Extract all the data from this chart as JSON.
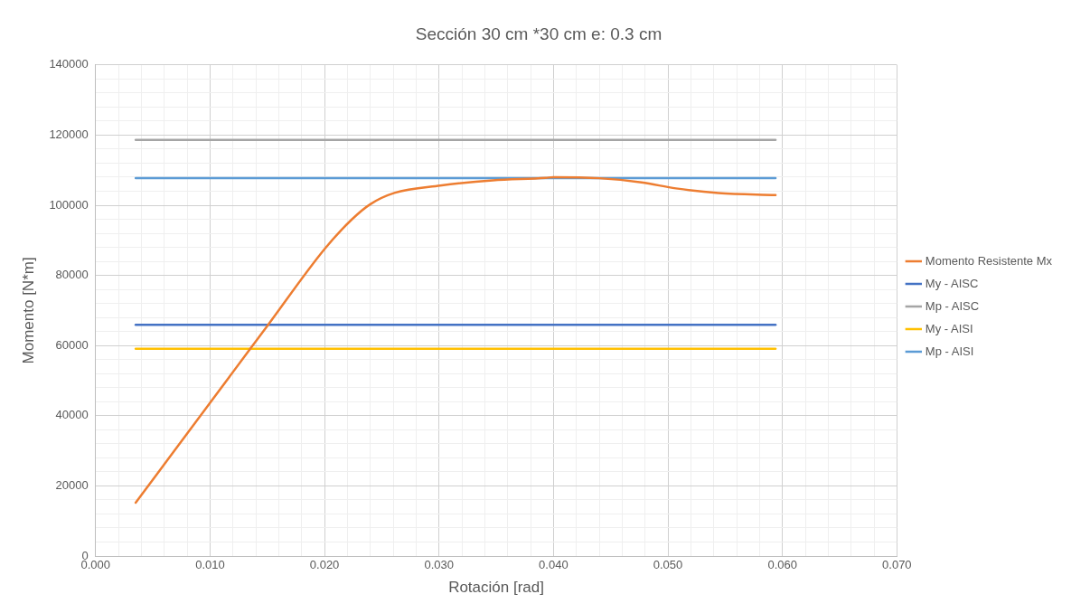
{
  "chart_data": {
    "type": "line",
    "title": "Sección 30 cm *30 cm e: 0.3 cm",
    "xlabel": "Rotación [rad]",
    "ylabel": "Momento [N*m]",
    "xlim": [
      0,
      0.07
    ],
    "xticks": [
      {
        "value": 0,
        "label": "0.000"
      },
      {
        "value": 0.002,
        "label": null
      },
      {
        "value": 0.004,
        "label": null
      },
      {
        "value": 0.006,
        "label": null
      },
      {
        "value": 0.008,
        "label": null
      },
      {
        "value": 0.01,
        "label": "0.010"
      },
      {
        "value": 0.012,
        "label": null
      },
      {
        "value": 0.014,
        "label": null
      },
      {
        "value": 0.016,
        "label": null
      },
      {
        "value": 0.018,
        "label": null
      },
      {
        "value": 0.02,
        "label": "0.020"
      },
      {
        "value": 0.022,
        "label": null
      },
      {
        "value": 0.024,
        "label": null
      },
      {
        "value": 0.026,
        "label": null
      },
      {
        "value": 0.028,
        "label": null
      },
      {
        "value": 0.03,
        "label": "0.030"
      },
      {
        "value": 0.032,
        "label": null
      },
      {
        "value": 0.034,
        "label": null
      },
      {
        "value": 0.036,
        "label": null
      },
      {
        "value": 0.038,
        "label": null
      },
      {
        "value": 0.04,
        "label": "0.040"
      },
      {
        "value": 0.042,
        "label": null
      },
      {
        "value": 0.044,
        "label": null
      },
      {
        "value": 0.046,
        "label": null
      },
      {
        "value": 0.048,
        "label": null
      },
      {
        "value": 0.05,
        "label": "0.050"
      },
      {
        "value": 0.052,
        "label": null
      },
      {
        "value": 0.054,
        "label": null
      },
      {
        "value": 0.056,
        "label": null
      },
      {
        "value": 0.058,
        "label": null
      },
      {
        "value": 0.06,
        "label": "0.060"
      },
      {
        "value": 0.062,
        "label": null
      },
      {
        "value": 0.064,
        "label": null
      },
      {
        "value": 0.066,
        "label": null
      },
      {
        "value": 0.068,
        "label": null
      },
      {
        "value": 0.07,
        "label": "0.070"
      }
    ],
    "ylim": [
      0,
      140000
    ],
    "yticks": [
      0,
      {
        "value": 4000,
        "label": null
      },
      {
        "value": 8000,
        "label": null
      },
      {
        "value": 12000,
        "label": null
      },
      {
        "value": 16000,
        "label": null
      },
      20000,
      {
        "value": 24000,
        "label": null
      },
      {
        "value": 28000,
        "label": null
      },
      {
        "value": 32000,
        "label": null
      },
      {
        "value": 36000,
        "label": null
      },
      40000,
      {
        "value": 44000,
        "label": null
      },
      {
        "value": 48000,
        "label": null
      },
      {
        "value": 52000,
        "label": null
      },
      {
        "value": 56000,
        "label": null
      },
      60000,
      {
        "value": 64000,
        "label": null
      },
      {
        "value": 68000,
        "label": null
      },
      {
        "value": 72000,
        "label": null
      },
      {
        "value": 76000,
        "label": null
      },
      80000,
      {
        "value": 84000,
        "label": null
      },
      {
        "value": 88000,
        "label": null
      },
      {
        "value": 92000,
        "label": null
      },
      {
        "value": 96000,
        "label": null
      },
      100000,
      {
        "value": 104000,
        "label": null
      },
      {
        "value": 108000,
        "label": null
      },
      {
        "value": 112000,
        "label": null
      },
      {
        "value": 116000,
        "label": null
      },
      120000,
      {
        "value": 124000,
        "label": null
      },
      {
        "value": 128000,
        "label": null
      },
      {
        "value": 132000,
        "label": null
      },
      {
        "value": 136000,
        "label": null
      },
      140000
    ],
    "grid": true,
    "legend": "right",
    "marker": "none",
    "line_style": "solid",
    "series": [
      {
        "name": "Momento Resistente Mx",
        "color": "#ed7d31",
        "x": [
          0.0035,
          0.01,
          0.015,
          0.02,
          0.0224,
          0.024,
          0.0261,
          0.0301,
          0.0347,
          0.0393,
          0.04,
          0.044,
          0.0477,
          0.0507,
          0.0544,
          0.0594
        ],
        "values": [
          15200,
          43700,
          65600,
          87500,
          96000,
          100300,
          103500,
          105600,
          107100,
          107800,
          108000,
          107700,
          106500,
          104800,
          103500,
          102900
        ]
      },
      {
        "name": "My - AISC",
        "color": "#4472c4",
        "x": [
          0.0035,
          0.0594
        ],
        "values": [
          65900,
          65900
        ]
      },
      {
        "name": "Mp - AISC",
        "color": "#a5a5a5",
        "x": [
          0.0035,
          0.0594
        ],
        "values": [
          118600,
          118600
        ]
      },
      {
        "name": "My - AISI",
        "color": "#ffc000",
        "x": [
          0.0035,
          0.0594
        ],
        "values": [
          59100,
          59100
        ]
      },
      {
        "name": "Mp - AISI",
        "color": "#5b9bd5",
        "x": [
          0.0035,
          0.0594
        ],
        "values": [
          107700,
          107700
        ]
      }
    ]
  }
}
